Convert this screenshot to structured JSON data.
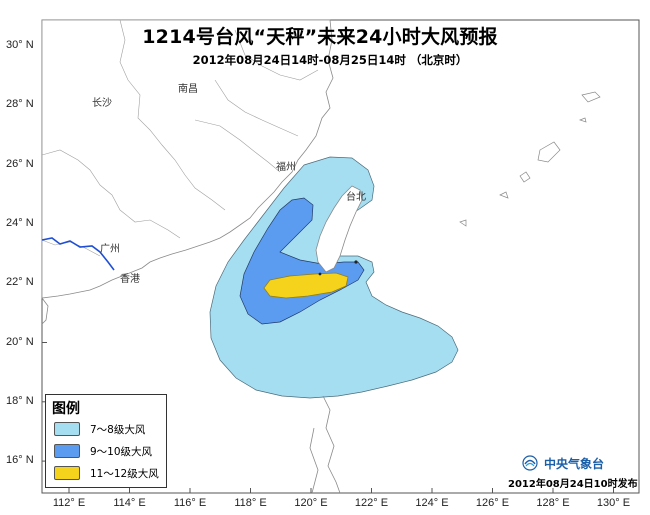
{
  "title": "1214号台风“天秤”未来24小时大风预报",
  "subtitle": "2012年08月24日14时-08月25日14时 （北京时）",
  "lat_labels": [
    "30° N",
    "28° N",
    "26° N",
    "24° N",
    "22° N",
    "20° N",
    "18° N",
    "16° N"
  ],
  "lon_labels": [
    "112° E",
    "114° E",
    "116° E",
    "118° E",
    "120° E",
    "122° E",
    "124° E",
    "126° E",
    "128° E",
    "130° E"
  ],
  "cities": {
    "changsha": "长沙",
    "nanchang": "南昌",
    "fuzhou": "福州",
    "taipei": "台北",
    "guangzhou": "广州",
    "hongkong": "香港"
  },
  "legend": {
    "title": "图例",
    "items": [
      {
        "label": "7～8级大风",
        "color": "#a6def1"
      },
      {
        "label": "9～10级大风",
        "color": "#5b9bf0"
      },
      {
        "label": "11～12级大风",
        "color": "#f5d31d"
      }
    ]
  },
  "agency": {
    "name": "中央气象台",
    "icon": "cma-logo-icon"
  },
  "issued": "2012年08月24日10时发布",
  "colors": {
    "frame": "#555555",
    "coast": "#8a8a8a",
    "boundary": "#9a9a9a",
    "river": "#1f4fd6"
  }
}
